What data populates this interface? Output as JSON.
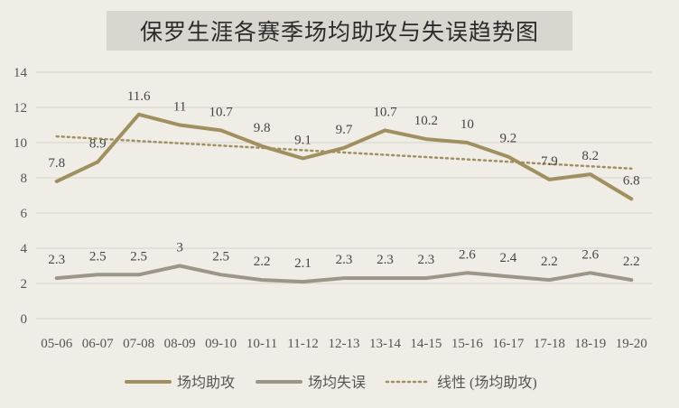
{
  "chart_data": {
    "type": "line",
    "title": "保罗生涯各赛季场均助攻与失误趋势图",
    "categories": [
      "05-06",
      "06-07",
      "07-08",
      "08-09",
      "09-10",
      "10-11",
      "11-12",
      "12-13",
      "13-14",
      "14-15",
      "15-16",
      "16-17",
      "17-18",
      "18-19",
      "19-20"
    ],
    "series": [
      {
        "name": "场均助攻",
        "values": [
          7.8,
          8.9,
          11.6,
          11,
          10.7,
          9.8,
          9.1,
          9.7,
          10.7,
          10.2,
          10,
          9.2,
          7.9,
          8.2,
          6.8
        ],
        "color": "#a08f5f",
        "style": "solid"
      },
      {
        "name": "场均失误",
        "values": [
          2.3,
          2.5,
          2.5,
          3,
          2.5,
          2.2,
          2.1,
          2.3,
          2.3,
          2.3,
          2.6,
          2.4,
          2.2,
          2.6,
          2.2
        ],
        "color": "#9c9689",
        "style": "solid"
      }
    ],
    "trendline": {
      "name": "线性 (场均助攻)",
      "of_series": "场均助攻",
      "kind": "linear",
      "color": "#a08f5f",
      "style": "dotted"
    },
    "ylim": [
      0,
      14
    ],
    "yticks": [
      "0",
      "2",
      "4",
      "6",
      "8",
      "10",
      "12",
      "14"
    ],
    "grid": true,
    "legend": "bottom",
    "data_labels": true
  }
}
